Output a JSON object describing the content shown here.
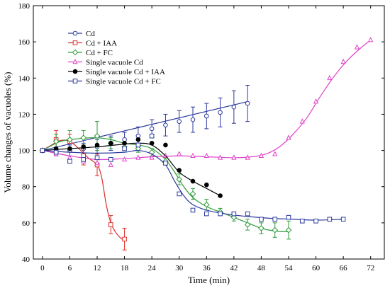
{
  "chart_data": {
    "type": "line",
    "xlabel": "Time (min)",
    "ylabel": "Volume changes of vacuoles (%)",
    "xlim": [
      -2,
      75
    ],
    "ylim": [
      40,
      180
    ],
    "xticks": [
      0,
      6,
      12,
      18,
      24,
      30,
      36,
      42,
      48,
      54,
      60,
      66,
      72
    ],
    "yticks": [
      40,
      60,
      80,
      100,
      120,
      140,
      160,
      180
    ],
    "grid": false,
    "legend_position": "top-left",
    "series": [
      {
        "name": "Cd",
        "color": "#2b3a9e",
        "marker": "circle-open",
        "points": [
          [
            0,
            100
          ],
          [
            3,
            99
          ],
          [
            6,
            100
          ],
          [
            9,
            101
          ],
          [
            12,
            102
          ],
          [
            15,
            104
          ],
          [
            18,
            106
          ],
          [
            21,
            108
          ],
          [
            24,
            112
          ],
          [
            27,
            114
          ],
          [
            30,
            116
          ],
          [
            33,
            117
          ],
          [
            36,
            119
          ],
          [
            39,
            121
          ],
          [
            42,
            124
          ],
          [
            45,
            126
          ]
        ],
        "errors": [
          0,
          2,
          3,
          3,
          4,
          4,
          4,
          5,
          5,
          6,
          6,
          7,
          7,
          8,
          9,
          10
        ],
        "fit": [
          [
            0,
            100
          ],
          [
            45,
            127
          ]
        ]
      },
      {
        "name": "Cd + IAA",
        "color": "#d9302c",
        "marker": "square-open",
        "points": [
          [
            0,
            100
          ],
          [
            3,
            106
          ],
          [
            6,
            105
          ],
          [
            9,
            97
          ],
          [
            12,
            92
          ],
          [
            15,
            59
          ],
          [
            18,
            51
          ]
        ],
        "errors": [
          0,
          5,
          4,
          5,
          6,
          5,
          6
        ],
        "fit": [
          [
            0,
            100
          ],
          [
            2,
            103
          ],
          [
            4,
            105.5
          ],
          [
            6,
            105
          ],
          [
            8,
            101
          ],
          [
            10,
            96
          ],
          [
            12,
            92
          ],
          [
            13,
            85
          ],
          [
            14,
            70
          ],
          [
            15,
            60
          ],
          [
            16,
            55
          ],
          [
            17,
            52
          ],
          [
            18,
            50
          ]
        ]
      },
      {
        "name": "Cd + FC",
        "color": "#2e9a3a",
        "marker": "diamond-open",
        "points": [
          [
            0,
            100
          ],
          [
            3,
            105
          ],
          [
            6,
            106
          ],
          [
            9,
            107
          ],
          [
            12,
            108
          ],
          [
            15,
            104
          ],
          [
            18,
            102
          ],
          [
            21,
            101
          ],
          [
            24,
            99
          ],
          [
            27,
            94
          ],
          [
            30,
            84
          ],
          [
            33,
            76
          ],
          [
            36,
            70
          ],
          [
            39,
            66
          ],
          [
            42,
            63
          ],
          [
            45,
            59
          ],
          [
            48,
            57
          ],
          [
            51,
            56
          ],
          [
            54,
            56
          ]
        ],
        "errors": [
          0,
          4,
          5,
          4,
          8,
          3,
          2,
          2,
          2,
          2,
          3,
          3,
          3,
          2,
          2,
          3,
          3,
          4,
          5
        ],
        "fit": [
          [
            0,
            100
          ],
          [
            4,
            105
          ],
          [
            8,
            106.5
          ],
          [
            12,
            107
          ],
          [
            15,
            106
          ],
          [
            18,
            104
          ],
          [
            21,
            103
          ],
          [
            24,
            101
          ],
          [
            27,
            95
          ],
          [
            29,
            88
          ],
          [
            31,
            80
          ],
          [
            33,
            74
          ],
          [
            36,
            69
          ],
          [
            39,
            66
          ],
          [
            42,
            63
          ],
          [
            45,
            60
          ],
          [
            48,
            57
          ],
          [
            51,
            55.5
          ],
          [
            54,
            55
          ]
        ]
      },
      {
        "name": "Single vacuole Cd",
        "color": "#e040c8",
        "marker": "triangle-open",
        "points": [
          [
            0,
            100
          ],
          [
            3,
            98
          ],
          [
            6,
            96
          ],
          [
            9,
            94
          ],
          [
            12,
            93
          ],
          [
            15,
            92
          ],
          [
            18,
            95
          ],
          [
            21,
            96
          ],
          [
            24,
            96
          ],
          [
            27,
            97
          ],
          [
            30,
            98
          ],
          [
            33,
            97
          ],
          [
            36,
            97
          ],
          [
            39,
            96
          ],
          [
            42,
            96
          ],
          [
            45,
            96
          ],
          [
            48,
            97
          ],
          [
            51,
            98
          ],
          [
            54,
            107
          ],
          [
            57,
            116
          ],
          [
            60,
            127
          ],
          [
            63,
            140
          ],
          [
            66,
            149
          ],
          [
            69,
            157
          ],
          [
            72,
            161
          ]
        ],
        "fit": [
          [
            0,
            100
          ],
          [
            6,
            97
          ],
          [
            12,
            95
          ],
          [
            18,
            95.5
          ],
          [
            24,
            96.5
          ],
          [
            30,
            97
          ],
          [
            36,
            96.5
          ],
          [
            42,
            96
          ],
          [
            46,
            96.5
          ],
          [
            49,
            98
          ],
          [
            52,
            102
          ],
          [
            55,
            109
          ],
          [
            58,
            118
          ],
          [
            61,
            130
          ],
          [
            64,
            141
          ],
          [
            67,
            150
          ],
          [
            70,
            157
          ],
          [
            72,
            161
          ]
        ]
      },
      {
        "name": "Single vacuole Cd + IAA",
        "color": "#000000",
        "marker": "circle-filled",
        "points": [
          [
            0,
            100
          ],
          [
            3,
            101
          ],
          [
            6,
            101
          ],
          [
            9,
            102
          ],
          [
            12,
            103
          ],
          [
            15,
            104
          ],
          [
            18,
            104
          ],
          [
            21,
            106
          ],
          [
            24,
            104
          ],
          [
            27,
            103
          ],
          [
            30,
            89
          ],
          [
            33,
            83
          ],
          [
            36,
            81
          ],
          [
            39,
            75
          ]
        ],
        "fit": [
          [
            0,
            100
          ],
          [
            6,
            101
          ],
          [
            12,
            102
          ],
          [
            18,
            103.5
          ],
          [
            21,
            104
          ],
          [
            24,
            103
          ],
          [
            27,
            97
          ],
          [
            30,
            88
          ],
          [
            33,
            83
          ],
          [
            36,
            79
          ],
          [
            39,
            75
          ]
        ]
      },
      {
        "name": "Single vacuole Cd + FC",
        "color": "#2b3a9e",
        "marker": "square-open",
        "points": [
          [
            0,
            100
          ],
          [
            3,
            99
          ],
          [
            6,
            94
          ],
          [
            9,
            95
          ],
          [
            12,
            96
          ],
          [
            15,
            95
          ],
          [
            18,
            101
          ],
          [
            21,
            103
          ],
          [
            24,
            108
          ],
          [
            27,
            93
          ],
          [
            30,
            76
          ],
          [
            33,
            67
          ],
          [
            36,
            65
          ],
          [
            39,
            65
          ],
          [
            42,
            65
          ],
          [
            45,
            65
          ],
          [
            48,
            62
          ],
          [
            51,
            62
          ],
          [
            54,
            63
          ],
          [
            57,
            61
          ],
          [
            60,
            61
          ],
          [
            63,
            62
          ],
          [
            66,
            62
          ]
        ],
        "fit": [
          [
            0,
            100
          ],
          [
            6,
            99
          ],
          [
            12,
            98.5
          ],
          [
            18,
            99
          ],
          [
            21,
            100
          ],
          [
            24,
            98
          ],
          [
            27,
            92
          ],
          [
            29,
            83
          ],
          [
            31,
            75
          ],
          [
            33,
            70
          ],
          [
            36,
            67
          ],
          [
            40,
            65
          ],
          [
            45,
            63.5
          ],
          [
            50,
            62.5
          ],
          [
            55,
            62
          ],
          [
            60,
            61.5
          ],
          [
            66,
            62
          ]
        ]
      }
    ]
  }
}
